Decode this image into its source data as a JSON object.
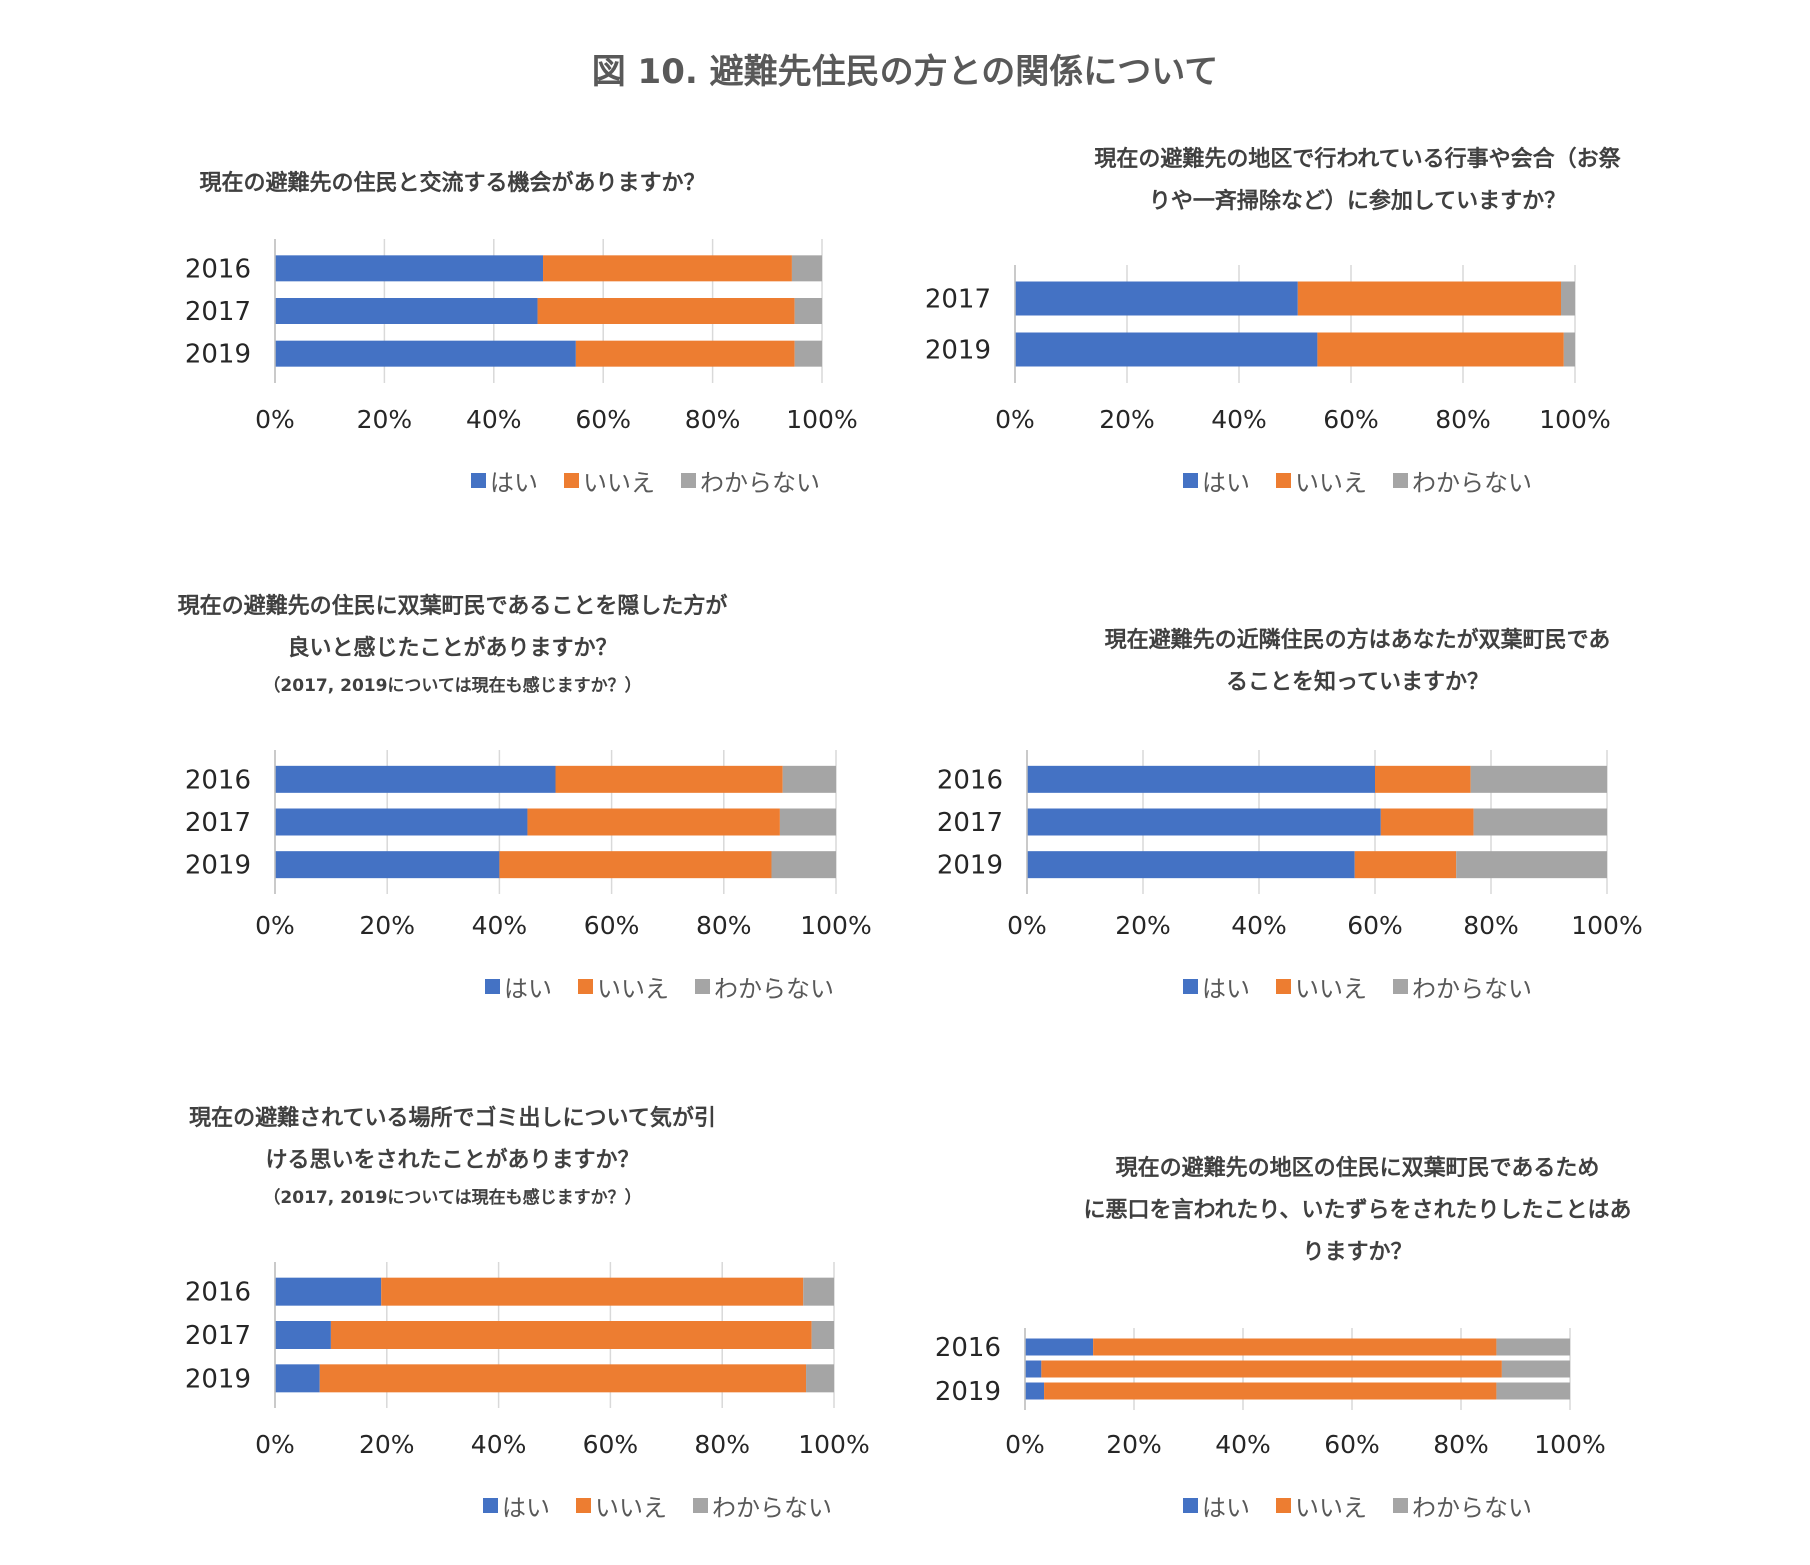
{
  "title": "図 10.  避難先住民の方との関係について",
  "legend": [
    {
      "label": "はい",
      "color": "#4472C4"
    },
    {
      "label": "いいえ",
      "color": "#ED7D31"
    },
    {
      "label": "わからない",
      "color": "#A5A5A5"
    }
  ],
  "chart_data": [
    {
      "type": "bar",
      "orientation": "horizontal",
      "stacked": "percent",
      "title_lines": [
        "現在の避難先の住民と交流する機会がありますか？"
      ],
      "note": "",
      "categories": [
        "2016",
        "2017",
        "2019"
      ],
      "series": [
        {
          "name": "はい",
          "values": [
            49,
            48,
            55
          ]
        },
        {
          "name": "いいえ",
          "values": [
            45.5,
            47,
            40
          ]
        },
        {
          "name": "わからない",
          "values": [
            5.5,
            5,
            5
          ]
        }
      ],
      "xlim": [
        0,
        100
      ],
      "xticks": [
        "0%",
        "20%",
        "40%",
        "60%",
        "80%",
        "100%"
      ],
      "grid": true,
      "legend_position": "bottom"
    },
    {
      "type": "bar",
      "orientation": "horizontal",
      "stacked": "percent",
      "title_lines": [
        "現在の避難先の地区で行われている行事や会合（お祭",
        "りや一斉掃除など）に参加していますか？"
      ],
      "note": "",
      "categories": [
        "2017",
        "2019"
      ],
      "series": [
        {
          "name": "はい",
          "values": [
            50.5,
            54
          ]
        },
        {
          "name": "いいえ",
          "values": [
            47,
            44
          ]
        },
        {
          "name": "わからない",
          "values": [
            2.5,
            2
          ]
        }
      ],
      "xlim": [
        0,
        100
      ],
      "xticks": [
        "0%",
        "20%",
        "40%",
        "60%",
        "80%",
        "100%"
      ],
      "grid": true,
      "legend_position": "bottom"
    },
    {
      "type": "bar",
      "orientation": "horizontal",
      "stacked": "percent",
      "title_lines": [
        "現在の避難先の住民に双葉町民であることを隠した方が",
        "良いと感じたことがありますか？"
      ],
      "note": "（2017, 2019については現在も感じますか？）",
      "categories": [
        "2016",
        "2017",
        "2019"
      ],
      "series": [
        {
          "name": "はい",
          "values": [
            50,
            45,
            40
          ]
        },
        {
          "name": "いいえ",
          "values": [
            40.5,
            45,
            48.5
          ]
        },
        {
          "name": "わからない",
          "values": [
            9.5,
            10,
            11.5
          ]
        }
      ],
      "xlim": [
        0,
        100
      ],
      "xticks": [
        "0%",
        "20%",
        "40%",
        "60%",
        "80%",
        "100%"
      ],
      "grid": true,
      "legend_position": "bottom"
    },
    {
      "type": "bar",
      "orientation": "horizontal",
      "stacked": "percent",
      "title_lines": [
        "現在避難先の近隣住民の方はあなたが双葉町民であ",
        "ることを知っていますか？"
      ],
      "note": "",
      "categories": [
        "2016",
        "2017",
        "2019"
      ],
      "series": [
        {
          "name": "はい",
          "values": [
            60,
            61,
            56.5
          ]
        },
        {
          "name": "いいえ",
          "values": [
            16.5,
            16,
            17.5
          ]
        },
        {
          "name": "わからない",
          "values": [
            23.5,
            23,
            26
          ]
        }
      ],
      "xlim": [
        0,
        100
      ],
      "xticks": [
        "0%",
        "20%",
        "40%",
        "60%",
        "80%",
        "100%"
      ],
      "grid": true,
      "legend_position": "bottom"
    },
    {
      "type": "bar",
      "orientation": "horizontal",
      "stacked": "percent",
      "title_lines": [
        "現在の避難されている場所でゴミ出しについて気が引",
        "ける思いをされたことがありますか？"
      ],
      "note": "（2017, 2019については現在も感じますか？）",
      "categories": [
        "2016",
        "2017",
        "2019"
      ],
      "series": [
        {
          "name": "はい",
          "values": [
            19,
            10,
            8
          ]
        },
        {
          "name": "いいえ",
          "values": [
            75.5,
            86,
            87
          ]
        },
        {
          "name": "わからない",
          "values": [
            5.5,
            4,
            5
          ]
        }
      ],
      "xlim": [
        0,
        100
      ],
      "xticks": [
        "0%",
        "20%",
        "40%",
        "60%",
        "80%",
        "100%"
      ],
      "grid": true,
      "legend_position": "bottom"
    },
    {
      "type": "bar",
      "orientation": "horizontal",
      "stacked": "percent",
      "title_lines": [
        "現在の避難先の地区の住民に双葉町民であるため",
        "に悪口を言われたり、いたずらをされたりしたことはあ",
        "りますか？"
      ],
      "note": "",
      "categories": [
        "2016",
        "",
        "2019"
      ],
      "series": [
        {
          "name": "はい",
          "values": [
            12.5,
            3,
            3.5
          ]
        },
        {
          "name": "いいえ",
          "values": [
            74,
            84.5,
            83
          ]
        },
        {
          "name": "わからない",
          "values": [
            13.5,
            12.5,
            13.5
          ]
        }
      ],
      "xlim": [
        0,
        100
      ],
      "xticks": [
        "0%",
        "20%",
        "40%",
        "60%",
        "80%",
        "100%"
      ],
      "grid": true,
      "legend_position": "bottom"
    }
  ]
}
